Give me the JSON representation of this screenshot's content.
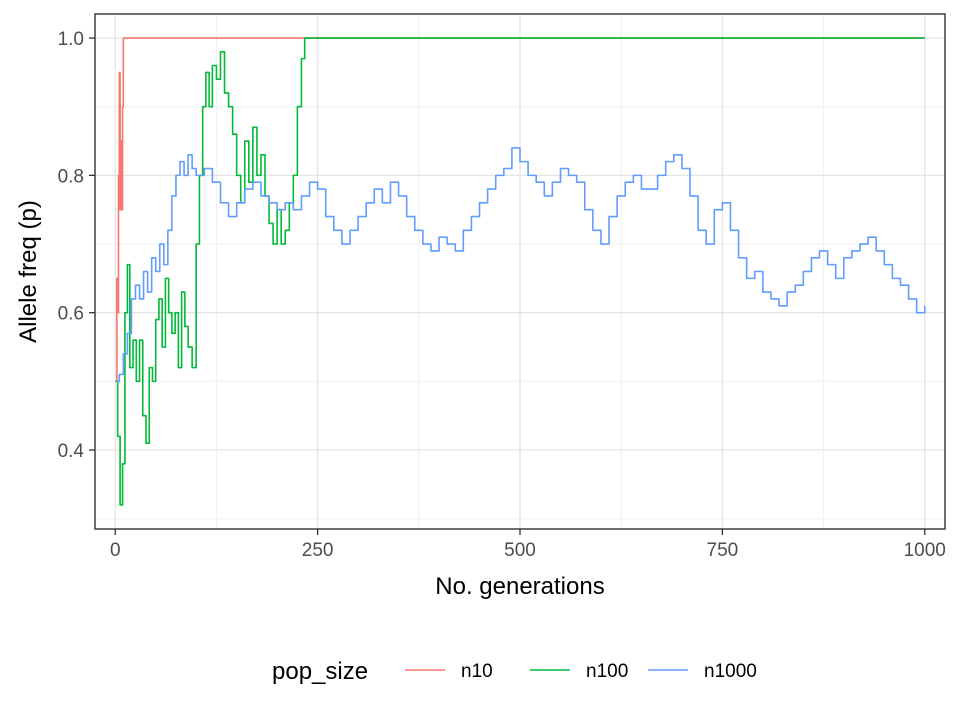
{
  "chart_data": {
    "type": "line",
    "title": "",
    "xlabel": "No. generations",
    "ylabel": "Allele freq (p)",
    "xlim": [
      -25,
      1025
    ],
    "ylim": [
      0.285,
      1.035
    ],
    "x_ticks": [
      0,
      250,
      500,
      750,
      1000
    ],
    "x_tick_labels": [
      "0",
      "250",
      "500",
      "750",
      "1000"
    ],
    "y_ticks": [
      0.4,
      0.6,
      0.8,
      1.0
    ],
    "y_tick_labels": [
      "0.4",
      "0.6",
      "0.8",
      "1.0"
    ],
    "grid": true,
    "legend": {
      "title": "pop_size",
      "position": "bottom"
    },
    "series": [
      {
        "name": "n10",
        "color": "#F8766D",
        "points": [
          [
            0,
            0.5
          ],
          [
            1,
            0.5
          ],
          [
            2,
            0.65
          ],
          [
            3,
            0.6
          ],
          [
            4,
            0.8
          ],
          [
            5,
            0.95
          ],
          [
            6,
            0.75
          ],
          [
            7,
            0.85
          ],
          [
            8,
            0.75
          ],
          [
            9,
            0.9
          ],
          [
            10,
            1.0
          ],
          [
            1000,
            1.0
          ]
        ]
      },
      {
        "name": "n100",
        "color": "#00BA38",
        "points": [
          [
            0,
            0.5
          ],
          [
            3,
            0.42
          ],
          [
            6,
            0.32
          ],
          [
            9,
            0.38
          ],
          [
            12,
            0.6
          ],
          [
            15,
            0.67
          ],
          [
            18,
            0.52
          ],
          [
            22,
            0.56
          ],
          [
            26,
            0.5
          ],
          [
            30,
            0.56
          ],
          [
            34,
            0.45
          ],
          [
            38,
            0.41
          ],
          [
            42,
            0.52
          ],
          [
            46,
            0.5
          ],
          [
            50,
            0.59
          ],
          [
            54,
            0.62
          ],
          [
            58,
            0.55
          ],
          [
            62,
            0.65
          ],
          [
            66,
            0.6
          ],
          [
            70,
            0.57
          ],
          [
            74,
            0.6
          ],
          [
            78,
            0.52
          ],
          [
            82,
            0.63
          ],
          [
            86,
            0.58
          ],
          [
            90,
            0.55
          ],
          [
            95,
            0.52
          ],
          [
            100,
            0.7
          ],
          [
            104,
            0.8
          ],
          [
            108,
            0.9
          ],
          [
            112,
            0.95
          ],
          [
            116,
            0.9
          ],
          [
            120,
            0.96
          ],
          [
            125,
            0.94
          ],
          [
            130,
            0.98
          ],
          [
            135,
            0.92
          ],
          [
            140,
            0.9
          ],
          [
            145,
            0.86
          ],
          [
            150,
            0.8
          ],
          [
            155,
            0.76
          ],
          [
            160,
            0.85
          ],
          [
            165,
            0.79
          ],
          [
            170,
            0.87
          ],
          [
            175,
            0.8
          ],
          [
            180,
            0.83
          ],
          [
            185,
            0.77
          ],
          [
            190,
            0.73
          ],
          [
            195,
            0.7
          ],
          [
            200,
            0.75
          ],
          [
            205,
            0.7
          ],
          [
            210,
            0.72
          ],
          [
            215,
            0.76
          ],
          [
            220,
            0.8
          ],
          [
            225,
            0.9
          ],
          [
            230,
            0.97
          ],
          [
            234,
            1.0
          ],
          [
            1000,
            1.0
          ]
        ]
      },
      {
        "name": "n1000",
        "color": "#619CFF",
        "points": [
          [
            0,
            0.5
          ],
          [
            5,
            0.51
          ],
          [
            10,
            0.54
          ],
          [
            15,
            0.57
          ],
          [
            20,
            0.62
          ],
          [
            25,
            0.64
          ],
          [
            30,
            0.62
          ],
          [
            35,
            0.66
          ],
          [
            40,
            0.63
          ],
          [
            45,
            0.68
          ],
          [
            50,
            0.66
          ],
          [
            55,
            0.7
          ],
          [
            60,
            0.67
          ],
          [
            65,
            0.72
          ],
          [
            70,
            0.77
          ],
          [
            75,
            0.8
          ],
          [
            80,
            0.82
          ],
          [
            85,
            0.8
          ],
          [
            90,
            0.83
          ],
          [
            95,
            0.81
          ],
          [
            100,
            0.8
          ],
          [
            110,
            0.81
          ],
          [
            120,
            0.79
          ],
          [
            130,
            0.76
          ],
          [
            140,
            0.74
          ],
          [
            150,
            0.76
          ],
          [
            160,
            0.78
          ],
          [
            170,
            0.79
          ],
          [
            180,
            0.77
          ],
          [
            190,
            0.76
          ],
          [
            200,
            0.75
          ],
          [
            210,
            0.76
          ],
          [
            220,
            0.75
          ],
          [
            230,
            0.77
          ],
          [
            240,
            0.79
          ],
          [
            250,
            0.78
          ],
          [
            260,
            0.74
          ],
          [
            270,
            0.72
          ],
          [
            280,
            0.7
          ],
          [
            290,
            0.72
          ],
          [
            300,
            0.74
          ],
          [
            310,
            0.76
          ],
          [
            320,
            0.78
          ],
          [
            330,
            0.76
          ],
          [
            340,
            0.79
          ],
          [
            350,
            0.77
          ],
          [
            360,
            0.74
          ],
          [
            370,
            0.72
          ],
          [
            380,
            0.7
          ],
          [
            390,
            0.69
          ],
          [
            400,
            0.71
          ],
          [
            410,
            0.7
          ],
          [
            420,
            0.69
          ],
          [
            430,
            0.72
          ],
          [
            440,
            0.74
          ],
          [
            450,
            0.76
          ],
          [
            460,
            0.78
          ],
          [
            470,
            0.8
          ],
          [
            480,
            0.81
          ],
          [
            490,
            0.84
          ],
          [
            500,
            0.82
          ],
          [
            510,
            0.8
          ],
          [
            520,
            0.79
          ],
          [
            530,
            0.77
          ],
          [
            540,
            0.79
          ],
          [
            550,
            0.81
          ],
          [
            560,
            0.8
          ],
          [
            570,
            0.79
          ],
          [
            580,
            0.75
          ],
          [
            590,
            0.72
          ],
          [
            600,
            0.7
          ],
          [
            610,
            0.74
          ],
          [
            620,
            0.77
          ],
          [
            630,
            0.79
          ],
          [
            640,
            0.8
          ],
          [
            650,
            0.78
          ],
          [
            660,
            0.78
          ],
          [
            670,
            0.8
          ],
          [
            680,
            0.82
          ],
          [
            690,
            0.83
          ],
          [
            700,
            0.81
          ],
          [
            710,
            0.77
          ],
          [
            720,
            0.72
          ],
          [
            730,
            0.7
          ],
          [
            740,
            0.75
          ],
          [
            750,
            0.76
          ],
          [
            760,
            0.72
          ],
          [
            770,
            0.68
          ],
          [
            780,
            0.65
          ],
          [
            790,
            0.66
          ],
          [
            800,
            0.63
          ],
          [
            810,
            0.62
          ],
          [
            820,
            0.61
          ],
          [
            830,
            0.63
          ],
          [
            840,
            0.64
          ],
          [
            850,
            0.66
          ],
          [
            860,
            0.68
          ],
          [
            870,
            0.69
          ],
          [
            880,
            0.67
          ],
          [
            890,
            0.65
          ],
          [
            900,
            0.68
          ],
          [
            910,
            0.69
          ],
          [
            920,
            0.7
          ],
          [
            930,
            0.71
          ],
          [
            940,
            0.69
          ],
          [
            950,
            0.67
          ],
          [
            960,
            0.65
          ],
          [
            970,
            0.64
          ],
          [
            980,
            0.62
          ],
          [
            990,
            0.6
          ],
          [
            1000,
            0.61
          ]
        ]
      }
    ]
  }
}
